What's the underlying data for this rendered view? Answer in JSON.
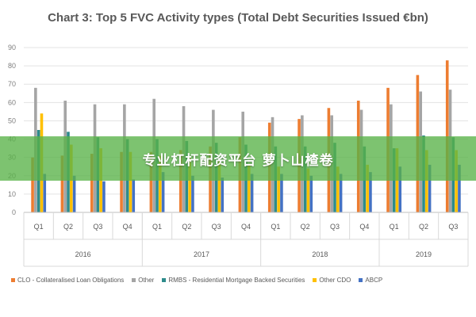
{
  "banner": {
    "text": "专业杠杆配资平台 萝卜山楂卷"
  },
  "chart_data": {
    "type": "bar",
    "title": "Chart 3: Top 5 FVC Activity types (Total Debt Securities Issued €bn)",
    "xlabel": "",
    "ylabel": "",
    "ylim": [
      0,
      90
    ],
    "yticks": [
      0,
      10,
      20,
      30,
      40,
      50,
      60,
      70,
      80,
      90
    ],
    "grid": true,
    "legend_position": "bottom",
    "categories": [
      "Q1",
      "Q2",
      "Q3",
      "Q4",
      "Q1",
      "Q2",
      "Q3",
      "Q4",
      "Q1",
      "Q2",
      "Q3",
      "Q4",
      "Q1",
      "Q2",
      "Q3"
    ],
    "groups": [
      {
        "label": "2016",
        "count": 4
      },
      {
        "label": "2017",
        "count": 4
      },
      {
        "label": "2018",
        "count": 4
      },
      {
        "label": "2019",
        "count": 3
      }
    ],
    "series": [
      {
        "name": "CLO - Collateralised Loan Obligations",
        "color": "#ED7D31",
        "values": [
          30,
          31,
          32,
          33,
          33,
          34,
          36,
          41,
          49,
          51,
          57,
          61,
          68,
          75,
          83
        ]
      },
      {
        "name": "Other",
        "color": "#A5A5A5",
        "values": [
          68,
          61,
          59,
          59,
          62,
          58,
          56,
          55,
          52,
          53,
          53,
          56,
          59,
          66,
          67
        ]
      },
      {
        "name": "RMBS - Residential Mortgage Backed Securities",
        "color": "#2E8B8B",
        "values": [
          45,
          44,
          41,
          40,
          40,
          39,
          38,
          37,
          36,
          36,
          38,
          36,
          35,
          42,
          41
        ]
      },
      {
        "name": "Other CDO",
        "color": "#FFC000",
        "values": [
          54,
          37,
          35,
          33,
          31,
          30,
          29,
          26,
          25,
          24,
          25,
          26,
          35,
          34,
          34
        ]
      },
      {
        "name": "ABCP",
        "color": "#4472C4",
        "values": [
          21,
          20,
          17,
          18,
          22,
          20,
          19,
          21,
          21,
          20,
          21,
          22,
          25,
          26,
          26
        ]
      }
    ]
  }
}
